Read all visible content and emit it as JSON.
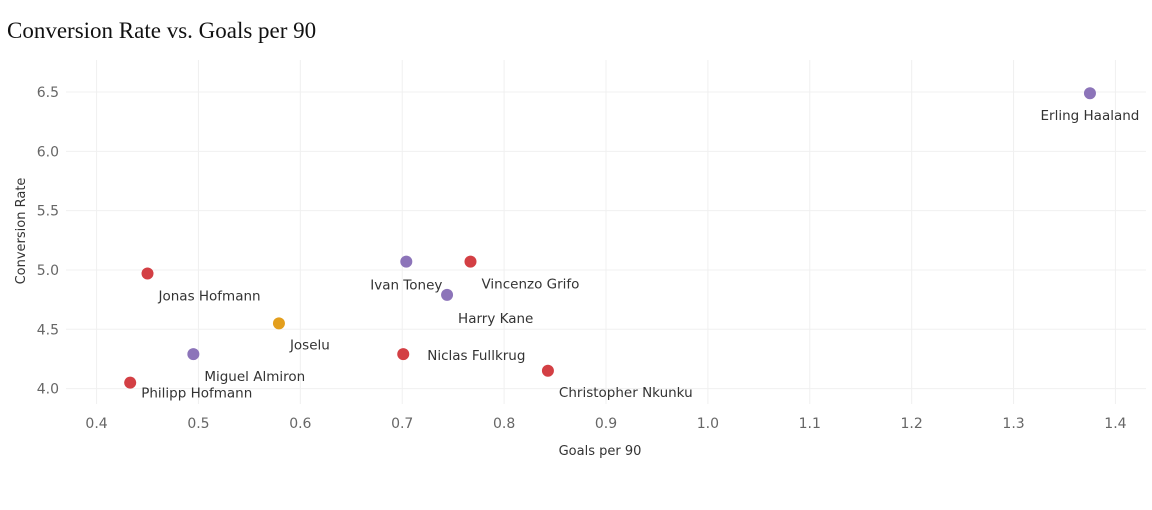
{
  "chart_data": {
    "type": "scatter",
    "title": "Conversion Rate vs. Goals per 90",
    "xlabel": "Goals per 90",
    "ylabel": "Conversion Rate",
    "xlim": [
      0.37,
      1.43
    ],
    "ylim": [
      3.87,
      6.77
    ],
    "x_ticks": [
      "0.4",
      "0.5",
      "0.6",
      "0.7",
      "0.8",
      "0.9",
      "1.0",
      "1.1",
      "1.2",
      "1.3",
      "1.4"
    ],
    "y_ticks": [
      "4.0",
      "4.5",
      "5.0",
      "5.5",
      "6.0",
      "6.5"
    ],
    "grid": true,
    "colors": {
      "red": "#d33f44",
      "purple": "#8c74b9",
      "orange": "#e39e1c"
    },
    "points": [
      {
        "label": "Erling Haaland",
        "x": 1.375,
        "y": 6.49,
        "color": "#8c74b9"
      },
      {
        "label": "Jonas Hofmann",
        "x": 0.45,
        "y": 4.97,
        "color": "#d33f44"
      },
      {
        "label": "Ivan Toney",
        "x": 0.704,
        "y": 5.07,
        "color": "#8c74b9"
      },
      {
        "label": "Vincenzo Grifo",
        "x": 0.767,
        "y": 5.07,
        "color": "#d33f44"
      },
      {
        "label": "Harry Kane",
        "x": 0.744,
        "y": 4.79,
        "color": "#8c74b9"
      },
      {
        "label": "Joselu",
        "x": 0.579,
        "y": 4.55,
        "color": "#e39e1c"
      },
      {
        "label": "Niclas Fullkrug",
        "x": 0.701,
        "y": 4.29,
        "color": "#d33f44"
      },
      {
        "label": "Miguel Almiron",
        "x": 0.495,
        "y": 4.29,
        "color": "#8c74b9"
      },
      {
        "label": "Philipp Hofmann",
        "x": 0.433,
        "y": 4.05,
        "color": "#d33f44"
      },
      {
        "label": "Christopher Nkunku",
        "x": 0.843,
        "y": 4.15,
        "color": "#d33f44"
      }
    ]
  }
}
